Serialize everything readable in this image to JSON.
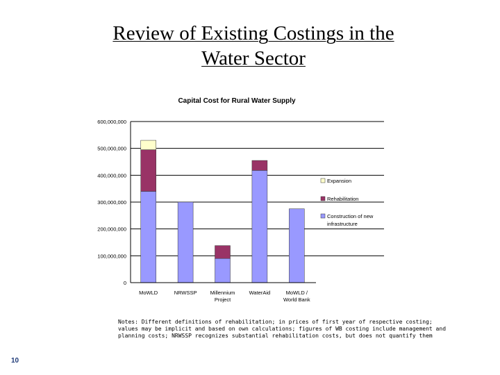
{
  "slide": {
    "title_line1": "Review of Existing Costings in the",
    "title_line2": "Water Sector",
    "notes": "Notes: Different definitions of rehabilitation; in prices of first year of respective costing; values may be implicit and based on own calculations; figures of WB costing include management and planning costs; NRWSSP recognizes substantial rehabilitation costs, but does not quantify them",
    "page_number": "10"
  },
  "chart_data": {
    "type": "bar",
    "stacked": true,
    "title": "Capital Cost for Rural Water Supply",
    "xlabel": "",
    "ylabel": "",
    "ylim": [
      0,
      600000000
    ],
    "yticks": [
      0,
      100000000,
      200000000,
      300000000,
      400000000,
      500000000,
      600000000
    ],
    "ytick_labels": [
      "0",
      "100,000,000",
      "200,000,000",
      "300,000,000",
      "400,000,000",
      "500,000,000",
      "600,000,000"
    ],
    "grid": true,
    "legend_position": "right",
    "categories": [
      [
        "MoWLD"
      ],
      [
        "NRWSSP"
      ],
      [
        "Millennium",
        "Project"
      ],
      [
        "WaterAid"
      ],
      [
        "MoWLD /",
        "World Bank"
      ]
    ],
    "series": [
      {
        "name": "Construction of new infrastructure",
        "legend_lines": [
          "Construction of new",
          "infrastructure"
        ],
        "color": "#9999ff",
        "values": [
          340000000,
          300000000,
          90000000,
          418000000,
          275000000
        ]
      },
      {
        "name": "Rehabilitation",
        "legend_lines": [
          "Rehabilitation"
        ],
        "color": "#993366",
        "values": [
          155000000,
          0,
          48000000,
          37000000,
          0
        ]
      },
      {
        "name": "Expansion",
        "legend_lines": [
          "Expansion"
        ],
        "color": "#ffffcc",
        "values": [
          35000000,
          0,
          0,
          0,
          0
        ]
      }
    ],
    "legend_order": [
      2,
      1,
      0
    ]
  }
}
